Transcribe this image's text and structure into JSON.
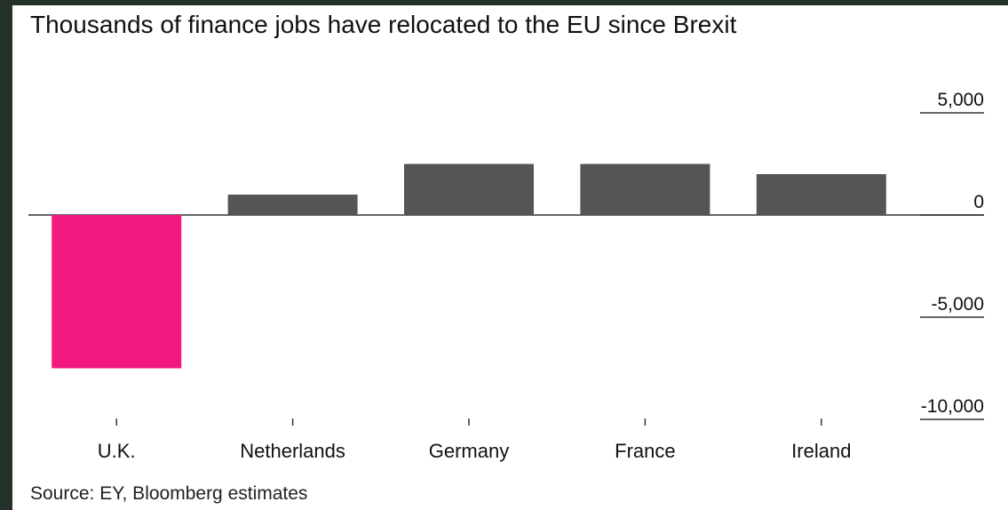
{
  "title": "Thousands of finance jobs have relocated to the EU since Brexit",
  "source": "Source: EY, Bloomberg estimates",
  "colors": {
    "negative": "#f2187e",
    "positive": "#555555",
    "axis": "#333333",
    "text": "#111111"
  },
  "chart_data": {
    "type": "bar",
    "title": "Thousands of finance jobs have relocated to the EU since Brexit",
    "categories": [
      "U.K.",
      "Netherlands",
      "Germany",
      "France",
      "Ireland"
    ],
    "values": [
      -7500,
      1000,
      2500,
      2500,
      2000
    ],
    "xlabel": "",
    "ylabel": "",
    "ylim": [
      -10000,
      5000
    ],
    "yticks": [
      5000,
      0,
      -5000,
      -10000
    ],
    "ytick_labels": [
      "5,000",
      "0",
      "-5,000",
      "-10,000"
    ],
    "grid": false,
    "legend": "none"
  }
}
